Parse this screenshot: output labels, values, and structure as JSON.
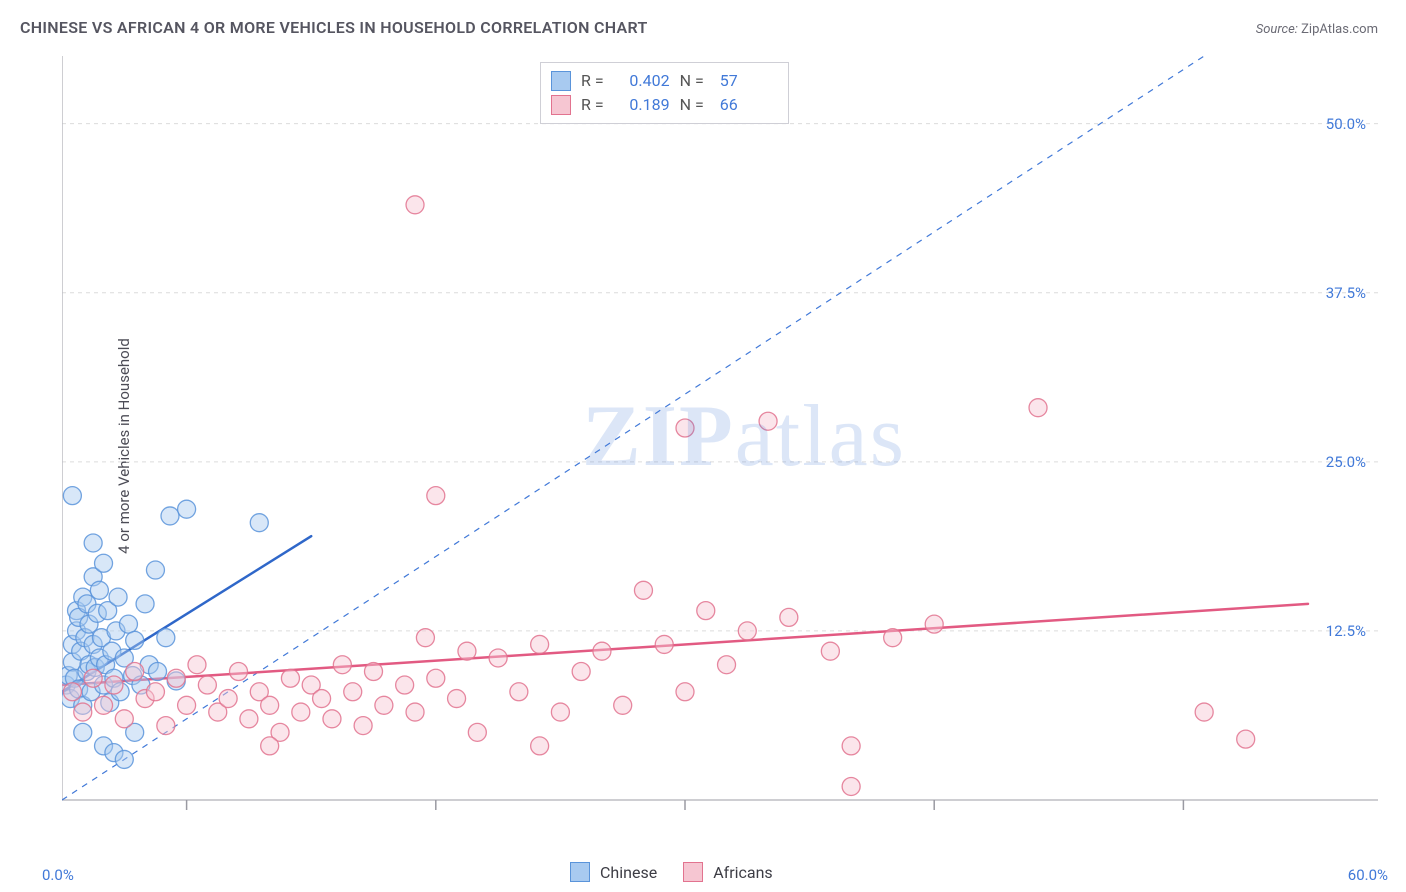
{
  "title": "CHINESE VS AFRICAN 4 OR MORE VEHICLES IN HOUSEHOLD CORRELATION CHART",
  "source_label": "Source:",
  "source_value": "ZipAtlas.com",
  "ylabel": "4 or more Vehicles in Household",
  "watermark_bold": "ZIP",
  "watermark_rest": "atlas",
  "chart": {
    "type": "scatter",
    "background_color": "#ffffff",
    "grid_color": "#dcdcdc",
    "grid_dash": "4,4",
    "xlim": [
      0,
      60
    ],
    "ylim": [
      0,
      55
    ],
    "xticks": [
      6,
      18,
      30,
      42,
      54
    ],
    "yticks": [
      12.5,
      25.0,
      37.5,
      50.0
    ],
    "ytick_labels": [
      "12.5%",
      "25.0%",
      "37.5%",
      "50.0%"
    ],
    "xlim_labels": [
      "0.0%",
      "60.0%"
    ],
    "axis_color": "#bdbdc4",
    "tick_color": "#9a9aa2",
    "tick_label_color": "#4179d8",
    "label_color": "#4c4c56",
    "title_color": "#555560",
    "title_fontsize": 16,
    "label_fontsize": 15,
    "tick_fontsize": 15,
    "marker_radius": 9,
    "marker_opacity": 0.45,
    "marker_stroke_opacity": 0.85,
    "trendline_width": 2.5,
    "identity_line": {
      "color": "#4179d8",
      "dash": "6,6",
      "width": 1.2,
      "x1": 0,
      "y1": 0,
      "x2": 55,
      "y2": 55
    },
    "series": [
      {
        "name": "Chinese",
        "color_fill": "#a8caf0",
        "color_stroke": "#5a94da",
        "R": "0.402",
        "N": "57",
        "trend": {
          "x1": 0,
          "y1": 8.0,
          "x2": 12,
          "y2": 19.5,
          "color": "#2f67c9"
        },
        "points": [
          [
            0.2,
            8.5
          ],
          [
            0.3,
            9.2
          ],
          [
            0.4,
            7.5
          ],
          [
            0.5,
            10.2
          ],
          [
            0.5,
            11.5
          ],
          [
            0.6,
            9.0
          ],
          [
            0.7,
            14.0
          ],
          [
            0.7,
            12.5
          ],
          [
            0.8,
            8.2
          ],
          [
            0.8,
            13.5
          ],
          [
            0.9,
            11.0
          ],
          [
            1.0,
            7.0
          ],
          [
            1.0,
            15.0
          ],
          [
            1.1,
            12.0
          ],
          [
            1.2,
            9.5
          ],
          [
            1.2,
            14.5
          ],
          [
            1.3,
            10.0
          ],
          [
            1.3,
            13.0
          ],
          [
            1.4,
            8.0
          ],
          [
            1.5,
            16.5
          ],
          [
            1.5,
            11.5
          ],
          [
            1.6,
            9.8
          ],
          [
            1.7,
            13.8
          ],
          [
            1.8,
            10.5
          ],
          [
            1.8,
            15.5
          ],
          [
            1.9,
            12.0
          ],
          [
            2.0,
            8.5
          ],
          [
            2.0,
            17.5
          ],
          [
            2.1,
            10.0
          ],
          [
            2.2,
            14.0
          ],
          [
            2.3,
            7.2
          ],
          [
            2.4,
            11.0
          ],
          [
            2.5,
            9.0
          ],
          [
            2.6,
            12.5
          ],
          [
            2.7,
            15.0
          ],
          [
            2.8,
            8.0
          ],
          [
            3.0,
            10.5
          ],
          [
            3.2,
            13.0
          ],
          [
            3.4,
            9.2
          ],
          [
            3.5,
            11.8
          ],
          [
            3.8,
            8.5
          ],
          [
            4.0,
            14.5
          ],
          [
            4.2,
            10.0
          ],
          [
            4.5,
            17.0
          ],
          [
            4.6,
            9.5
          ],
          [
            5.0,
            12.0
          ],
          [
            5.2,
            21.0
          ],
          [
            5.5,
            8.8
          ],
          [
            6.0,
            21.5
          ],
          [
            0.5,
            22.5
          ],
          [
            1.5,
            19.0
          ],
          [
            2.0,
            4.0
          ],
          [
            2.5,
            3.5
          ],
          [
            3.0,
            3.0
          ],
          [
            3.5,
            5.0
          ],
          [
            9.5,
            20.5
          ],
          [
            1.0,
            5.0
          ]
        ]
      },
      {
        "name": "Africans",
        "color_fill": "#f6c6d2",
        "color_stroke": "#e2738f",
        "R": "0.189",
        "N": "66",
        "trend": {
          "x1": 0,
          "y1": 8.5,
          "x2": 60,
          "y2": 14.5,
          "color": "#e25a82"
        },
        "points": [
          [
            0.5,
            8.0
          ],
          [
            1.0,
            6.5
          ],
          [
            1.5,
            9.0
          ],
          [
            2.0,
            7.0
          ],
          [
            2.5,
            8.5
          ],
          [
            3.0,
            6.0
          ],
          [
            3.5,
            9.5
          ],
          [
            4.0,
            7.5
          ],
          [
            4.5,
            8.0
          ],
          [
            5.0,
            5.5
          ],
          [
            5.5,
            9.0
          ],
          [
            6.0,
            7.0
          ],
          [
            6.5,
            10.0
          ],
          [
            7.0,
            8.5
          ],
          [
            7.5,
            6.5
          ],
          [
            8.0,
            7.5
          ],
          [
            8.5,
            9.5
          ],
          [
            9.0,
            6.0
          ],
          [
            9.5,
            8.0
          ],
          [
            10.0,
            7.0
          ],
          [
            10.5,
            5.0
          ],
          [
            11.0,
            9.0
          ],
          [
            11.5,
            6.5
          ],
          [
            12.0,
            8.5
          ],
          [
            12.5,
            7.5
          ],
          [
            13.0,
            6.0
          ],
          [
            13.5,
            10.0
          ],
          [
            14.0,
            8.0
          ],
          [
            14.5,
            5.5
          ],
          [
            15.0,
            9.5
          ],
          [
            15.5,
            7.0
          ],
          [
            16.5,
            8.5
          ],
          [
            17.0,
            6.5
          ],
          [
            17.5,
            12.0
          ],
          [
            18.0,
            9.0
          ],
          [
            19.0,
            7.5
          ],
          [
            19.5,
            11.0
          ],
          [
            20.0,
            5.0
          ],
          [
            21.0,
            10.5
          ],
          [
            22.0,
            8.0
          ],
          [
            23.0,
            11.5
          ],
          [
            24.0,
            6.5
          ],
          [
            25.0,
            9.5
          ],
          [
            26.0,
            11.0
          ],
          [
            27.0,
            7.0
          ],
          [
            28.0,
            15.5
          ],
          [
            29.0,
            11.5
          ],
          [
            30.0,
            8.0
          ],
          [
            31.0,
            14.0
          ],
          [
            32.0,
            10.0
          ],
          [
            33.0,
            12.5
          ],
          [
            35.0,
            13.5
          ],
          [
            37.0,
            11.0
          ],
          [
            38.0,
            4.0
          ],
          [
            40.0,
            12.0
          ],
          [
            42.0,
            13.0
          ],
          [
            18.0,
            22.5
          ],
          [
            17.0,
            44.0
          ],
          [
            30.0,
            27.5
          ],
          [
            34.0,
            28.0
          ],
          [
            47.0,
            29.0
          ],
          [
            55.0,
            6.5
          ],
          [
            57.0,
            4.5
          ],
          [
            38.0,
            1.0
          ],
          [
            10.0,
            4.0
          ],
          [
            23.0,
            4.0
          ]
        ]
      }
    ]
  },
  "corr_legend": {
    "R_label": "R =",
    "N_label": "N ="
  },
  "bottom_legend": {
    "items": [
      "Chinese",
      "Africans"
    ]
  }
}
